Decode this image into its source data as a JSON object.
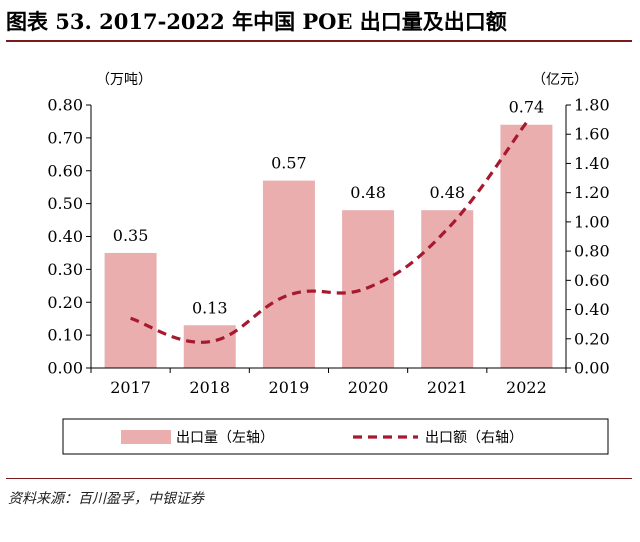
{
  "header": {
    "title": "图表 53. 2017-2022 年中国 POE 出口量及出口额"
  },
  "footer": {
    "source": "资料来源：百川盈孚，中银证券"
  },
  "colors": {
    "bar": "#eaaeae",
    "line": "#a6192e",
    "rule": "#7a1c1c"
  },
  "chart_data": {
    "type": "bar",
    "categories": [
      "2017",
      "2018",
      "2019",
      "2020",
      "2021",
      "2022"
    ],
    "series": [
      {
        "name": "出口量（左轴）",
        "type": "bar",
        "axis": "left",
        "values": [
          0.35,
          0.13,
          0.57,
          0.48,
          0.48,
          0.74
        ],
        "labels": [
          "0.35",
          "0.13",
          "0.57",
          "0.48",
          "0.48",
          "0.74"
        ]
      },
      {
        "name": "出口额（右轴）",
        "type": "line",
        "style": "dashed",
        "axis": "right",
        "values": [
          0.34,
          0.18,
          0.5,
          0.55,
          0.95,
          1.68
        ]
      }
    ],
    "y_left": {
      "unit": "（万吨）",
      "ylim": [
        0,
        0.8
      ],
      "ticks": [
        "0.00",
        "0.10",
        "0.20",
        "0.30",
        "0.40",
        "0.50",
        "0.60",
        "0.70",
        "0.80"
      ]
    },
    "y_right": {
      "unit": "（亿元）",
      "ylim": [
        0,
        1.8
      ],
      "ticks": [
        "0.00",
        "0.20",
        "0.40",
        "0.60",
        "0.80",
        "1.00",
        "1.20",
        "1.40",
        "1.60",
        "1.80"
      ]
    },
    "grid": false,
    "legend": "bottom"
  }
}
